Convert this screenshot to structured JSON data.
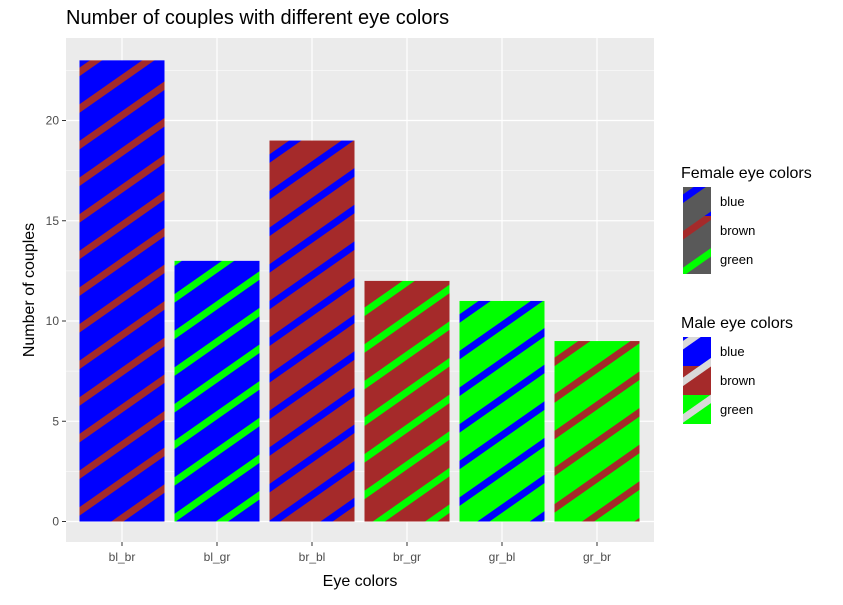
{
  "chart_data": {
    "type": "bar",
    "title": "Number of couples with different eye colors",
    "xlabel": "Eye colors",
    "ylabel": "Number of couples",
    "categories": [
      "bl_br",
      "bl_gr",
      "br_bl",
      "br_gr",
      "gr_bl",
      "gr_br"
    ],
    "values": [
      23,
      13,
      19,
      12,
      11,
      9
    ],
    "male_fill": [
      "blue",
      "blue",
      "brown",
      "brown",
      "green",
      "green"
    ],
    "female_pattern": [
      "brown",
      "green",
      "blue",
      "green",
      "blue",
      "brown"
    ],
    "ylim": [
      0,
      24
    ],
    "yticks": [
      0,
      5,
      10,
      15,
      20
    ],
    "grid": true,
    "legend_position": "right",
    "legends": [
      {
        "title": "Female eye colors",
        "entries": [
          {
            "label": "blue",
            "key": "blue"
          },
          {
            "label": "brown",
            "key": "brown"
          },
          {
            "label": "green",
            "key": "green"
          }
        ]
      },
      {
        "title": "Male eye colors",
        "entries": [
          {
            "label": "blue",
            "key": "blue"
          },
          {
            "label": "brown",
            "key": "brown"
          },
          {
            "label": "green",
            "key": "green"
          }
        ]
      }
    ],
    "colors": {
      "blue": "#0000ff",
      "brown": "#a52a2a",
      "green": "#00ff00",
      "panel": "#ebebeb",
      "gridline": "#ffffff",
      "legend_key_bg": "#595959",
      "legend_stripe_male": "#d9d9d9"
    }
  }
}
